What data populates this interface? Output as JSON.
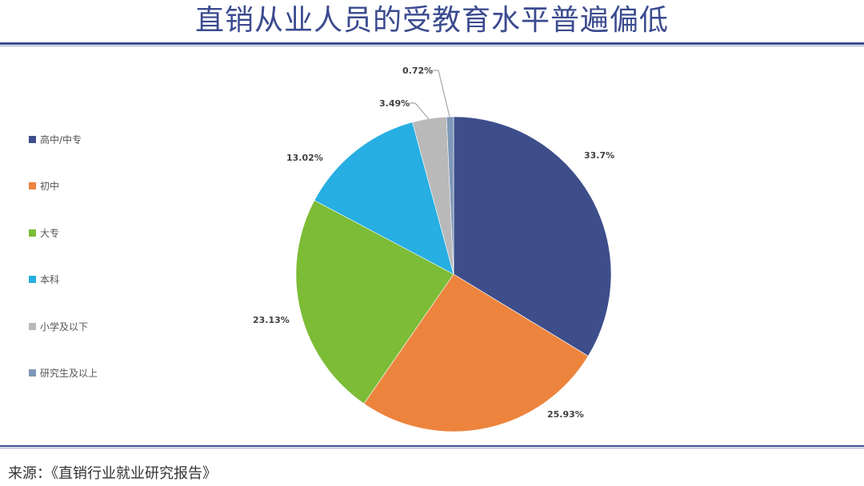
{
  "title": "直销从业人员的受教育水平普遍偏低",
  "source": "来源：《直销行业就业研究报告》",
  "chart_data": {
    "type": "pie",
    "title": "直销从业人员的受教育水平普遍偏低",
    "categories": [
      "高中/中专",
      "初中",
      "大专",
      "本科",
      "小学及以下",
      "研究生及以上"
    ],
    "values": [
      33.7,
      25.93,
      23.13,
      13.02,
      3.49,
      0.72
    ],
    "labels": [
      "33.7%",
      "25.93%",
      "23.13%",
      "13.02%",
      "3.49%",
      "0.72%"
    ],
    "colors": [
      "#3d4e8b",
      "#ed843e",
      "#7cbc36",
      "#27aee2",
      "#b9b9b9",
      "#7f97b8"
    ],
    "legend_position": "left",
    "start_angle": "12 o'clock, clockwise"
  },
  "legend": [
    {
      "label": "高中/中专",
      "color": "#3d4e8b"
    },
    {
      "label": "初中",
      "color": "#ed843e"
    },
    {
      "label": "大专",
      "color": "#7cbc36"
    },
    {
      "label": "本科",
      "color": "#27aee2"
    },
    {
      "label": "小学及以下",
      "color": "#b9b9b9"
    },
    {
      "label": "研究生及以上",
      "color": "#7f97b8"
    }
  ]
}
